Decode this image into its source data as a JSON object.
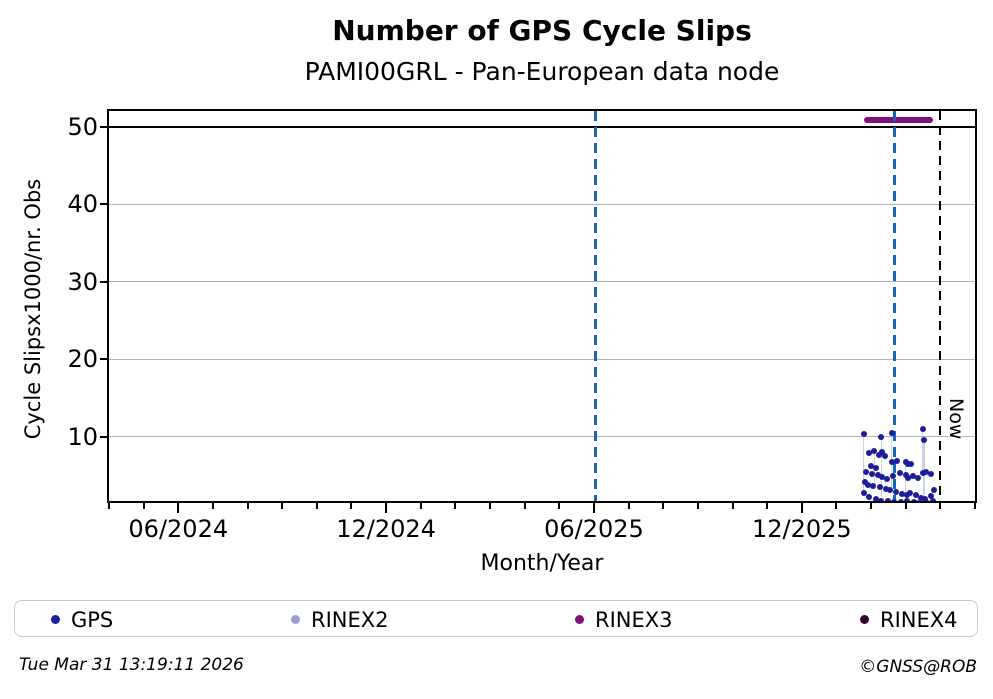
{
  "title": "Number of GPS Cycle Slips",
  "subtitle": "PAMI00GRL - Pan-European data node",
  "now_label": "Now",
  "footer": {
    "timestamp": "Tue Mar 31 13:19:11 2026",
    "credit": "©GNSS@ROB"
  },
  "colors": {
    "gps": "#1c1c9c",
    "rinex2": "#9a9ad8",
    "rinex3": "#7d107d",
    "rinex4": "#2e082e",
    "marker_blue": "#1467b8",
    "grid": "#b4b4b4",
    "axis": "#000000",
    "stem": "rgba(150,150,205,0.45)"
  },
  "legend": [
    {
      "label": "GPS",
      "color": "#1c1c9c"
    },
    {
      "label": "RINEX2",
      "color": "#9a9ad8"
    },
    {
      "label": "RINEX3",
      "color": "#7d107d"
    },
    {
      "label": "RINEX4",
      "color": "#2e082e"
    }
  ],
  "chart_data": {
    "type": "scatter",
    "title": "Number of GPS Cycle Slips",
    "subtitle": "PAMI00GRL - Pan-European data node",
    "xlabel": "Month/Year",
    "ylabel": "Cycle Slipsx1000/nr. Obs",
    "x_start": "2024-04-01",
    "x_end": "2026-05-01",
    "ylim": [
      1.5,
      52.1
    ],
    "yticks": [
      10,
      20,
      30,
      40,
      50
    ],
    "grid_yticks": [
      10,
      20,
      30,
      40
    ],
    "clip_line_y": 50,
    "xticks_major": [
      {
        "date": "2024-06-01",
        "label": "06/2024"
      },
      {
        "date": "2024-12-01",
        "label": "12/2024"
      },
      {
        "date": "2025-06-01",
        "label": "06/2025"
      },
      {
        "date": "2025-12-01",
        "label": "12/2025"
      }
    ],
    "xticks_minor_interval_months": 1,
    "legend_position": "bottom",
    "grid": true,
    "marker_lines": [
      {
        "date": "2025-06-02",
        "color": "#1467b8",
        "style": "dashed",
        "label": ""
      },
      {
        "date": "2026-02-22",
        "color": "#1467b8",
        "style": "dashed",
        "label": ""
      },
      {
        "date": "2026-03-31",
        "color": "#000000",
        "style": "dashed",
        "label": "Now"
      }
    ],
    "rinex3_bar": {
      "series": "RINEX3",
      "start": "2026-01-25",
      "end": "2026-03-25",
      "y": 50.8,
      "color": "#7d107d"
    },
    "stems": [
      {
        "date": "2026-01-25",
        "from": 2.7,
        "to": 10.3
      },
      {
        "date": "2026-02-04",
        "from": 3.6,
        "to": 8.1
      },
      {
        "date": "2026-02-10",
        "from": 1.7,
        "to": 10.0
      },
      {
        "date": "2026-02-19",
        "from": 3.1,
        "to": 10.4
      },
      {
        "date": "2026-03-01",
        "from": 2.4,
        "to": 6.7
      },
      {
        "date": "2026-03-16",
        "from": 5.3,
        "to": 11.0
      },
      {
        "date": "2026-03-17",
        "from": 1.5,
        "to": 9.6
      }
    ],
    "series": [
      {
        "name": "GPS",
        "color": "#1c1c9c",
        "points": [
          [
            "2026-01-25",
            10.3
          ],
          [
            "2026-02-10",
            10.0
          ],
          [
            "2026-02-19",
            10.4
          ],
          [
            "2026-03-16",
            11.0
          ],
          [
            "2026-03-17",
            9.6
          ],
          [
            "2026-01-30",
            7.9
          ],
          [
            "2026-02-04",
            8.1
          ],
          [
            "2026-02-08",
            7.6
          ],
          [
            "2026-02-11",
            8.0
          ],
          [
            "2026-02-13",
            7.5
          ],
          [
            "2026-02-19",
            6.7
          ],
          [
            "2026-02-24",
            6.9
          ],
          [
            "2026-03-01",
            6.7
          ],
          [
            "2026-03-03",
            6.4
          ],
          [
            "2026-03-06",
            6.5
          ],
          [
            "2026-01-27",
            5.4
          ],
          [
            "2026-02-01",
            6.2
          ],
          [
            "2026-02-02",
            5.1
          ],
          [
            "2026-02-05",
            5.9
          ],
          [
            "2026-02-07",
            5.0
          ],
          [
            "2026-02-11",
            4.8
          ],
          [
            "2026-02-15",
            4.5
          ],
          [
            "2026-02-20",
            4.9
          ],
          [
            "2026-02-26",
            5.3
          ],
          [
            "2026-03-01",
            5.0
          ],
          [
            "2026-03-03",
            4.6
          ],
          [
            "2026-03-07",
            4.9
          ],
          [
            "2026-03-12",
            4.6
          ],
          [
            "2026-03-16",
            5.3
          ],
          [
            "2026-03-19",
            5.4
          ],
          [
            "2026-03-23",
            5.1
          ],
          [
            "2026-01-26",
            4.1
          ],
          [
            "2026-01-29",
            3.8
          ],
          [
            "2026-02-03",
            3.6
          ],
          [
            "2026-02-09",
            3.5
          ],
          [
            "2026-02-14",
            3.2
          ],
          [
            "2026-02-18",
            3.1
          ],
          [
            "2026-02-23",
            2.8
          ],
          [
            "2026-02-28",
            2.6
          ],
          [
            "2026-03-02",
            2.4
          ],
          [
            "2026-03-05",
            2.7
          ],
          [
            "2026-03-10",
            2.4
          ],
          [
            "2026-03-14",
            2.1
          ],
          [
            "2026-03-18",
            2.0
          ],
          [
            "2026-03-23",
            2.3
          ],
          [
            "2026-03-26",
            3.1
          ],
          [
            "2026-01-25",
            2.7
          ],
          [
            "2026-01-30",
            2.2
          ],
          [
            "2026-02-05",
            2.0
          ],
          [
            "2026-02-10",
            1.7
          ],
          [
            "2026-02-16",
            1.7
          ],
          [
            "2026-02-21",
            1.6
          ],
          [
            "2026-02-27",
            1.5
          ],
          [
            "2026-03-02",
            1.7
          ],
          [
            "2026-03-08",
            1.6
          ],
          [
            "2026-03-13",
            1.4
          ],
          [
            "2026-03-20",
            1.4
          ],
          [
            "2026-03-25",
            1.7
          ]
        ]
      },
      {
        "name": "RINEX2",
        "color": "#9a9ad8",
        "points": []
      },
      {
        "name": "RINEX3",
        "color": "#7d107d",
        "points": []
      },
      {
        "name": "RINEX4",
        "color": "#2e082e",
        "points": []
      }
    ]
  }
}
